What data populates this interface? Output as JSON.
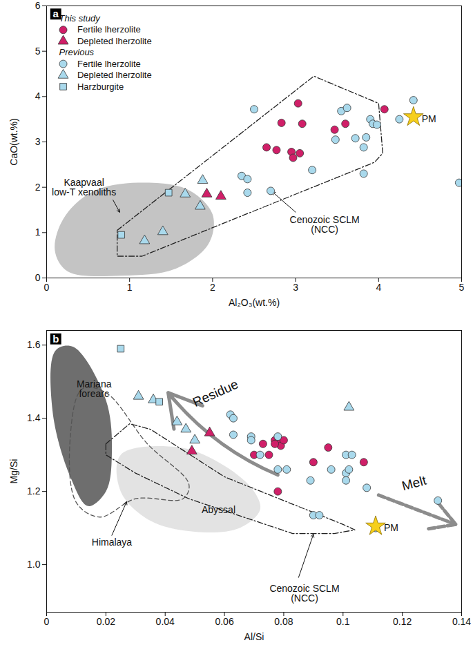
{
  "chart_data": [
    {
      "type": "scatter",
      "panel_label": "a",
      "xlabel": "Al₂O₃(wt.%)",
      "ylabel": "CaO(wt.%)",
      "xlim": [
        0,
        5
      ],
      "ylim": [
        0,
        6
      ],
      "xticks": [
        0,
        1,
        2,
        3,
        4,
        5
      ],
      "yticks": [
        0,
        1,
        2,
        3,
        4,
        5,
        6
      ],
      "legend": "top-left",
      "series": [
        {
          "name": "Fertile lherzolite",
          "group": "This study",
          "color": "#d01f68",
          "marker": "circle",
          "x": [
            3.03,
            4.07,
            3.47,
            3.6,
            2.83,
            3.08,
            2.65,
            2.77,
            2.95,
            2.97,
            3.05
          ],
          "y": [
            3.85,
            3.72,
            3.27,
            3.4,
            3.42,
            3.4,
            2.88,
            2.82,
            2.78,
            2.65,
            2.75
          ]
        },
        {
          "name": "Depleted lherzolite",
          "group": "This study",
          "color": "#d01f68",
          "marker": "triangle",
          "x": [
            1.93,
            2.1
          ],
          "y": [
            1.85,
            1.8
          ]
        },
        {
          "name": "Fertile lherzolite",
          "group": "Previous",
          "color": "#a9d9ec",
          "marker": "circle",
          "x": [
            2.5,
            3.55,
            3.62,
            3.48,
            3.72,
            3.85,
            3.9,
            3.93,
            3.98,
            4.25,
            4.42,
            3.82,
            3.82,
            3.2,
            2.35,
            2.42,
            2.42,
            2.7,
            4.97
          ],
          "y": [
            3.72,
            3.68,
            3.75,
            3.05,
            3.08,
            3.1,
            3.5,
            3.4,
            3.38,
            3.5,
            3.92,
            2.88,
            2.3,
            2.38,
            2.25,
            2.18,
            1.88,
            1.92,
            2.1
          ]
        },
        {
          "name": "Depleted lherzolite",
          "group": "Previous",
          "color": "#a9d9ec",
          "marker": "triangle",
          "x": [
            1.67,
            1.88,
            1.4,
            1.85,
            1.18
          ],
          "y": [
            1.85,
            2.15,
            1.02,
            1.58,
            0.82
          ]
        },
        {
          "name": "Harzburgite",
          "group": "Previous",
          "color": "#a9d9ec",
          "marker": "square",
          "x": [
            1.47,
            0.9
          ],
          "y": [
            1.88,
            0.95
          ]
        },
        {
          "name": "PM",
          "color": "#f6cf1c",
          "marker": "star",
          "x": [
            4.42
          ],
          "y": [
            3.55
          ]
        }
      ],
      "regions": [
        {
          "name": "Kaapvaal\nlow-T xenoliths",
          "color": "#c4c4c4",
          "points": [
            [
              0.25,
              0.15
            ],
            [
              0.9,
              0.05
            ],
            [
              1.55,
              0.2
            ],
            [
              1.95,
              0.75
            ],
            [
              2.0,
              1.4
            ],
            [
              1.7,
              1.95
            ],
            [
              1.1,
              2.1
            ],
            [
              0.55,
              1.9
            ],
            [
              0.2,
              1.3
            ],
            [
              0.1,
              0.6
            ]
          ]
        },
        {
          "name": "Cenozoic SCLM\n(NCC)",
          "color": "#222222",
          "line_style": "dashdot",
          "points": [
            [
              0.85,
              1.05
            ],
            [
              3.22,
              4.45
            ],
            [
              4.0,
              3.85
            ],
            [
              4.05,
              2.75
            ],
            [
              3.95,
              2.55
            ],
            [
              1.15,
              0.48
            ],
            [
              0.85,
              0.48
            ]
          ]
        }
      ]
    },
    {
      "type": "scatter",
      "panel_label": "b",
      "xlabel": "Al/Si",
      "ylabel": "Mg/Si",
      "xlim": [
        0,
        0.14
      ],
      "ylim": [
        0.87,
        1.64
      ],
      "xticks": [
        0,
        0.02,
        0.04,
        0.06,
        0.08,
        0.1,
        0.12,
        0.14
      ],
      "yticks": [
        {
          "value": 1,
          "label": "1.0"
        },
        1.2,
        1.4,
        1.6
      ],
      "series": [
        {
          "color": "#d01f68",
          "marker": "circle",
          "x": [
            0.07,
            0.073,
            0.075,
            0.077,
            0.078,
            0.079,
            0.08,
            0.078,
            0.09,
            0.095,
            0.107,
            0.077
          ],
          "y": [
            1.3,
            1.33,
            1.3,
            1.34,
            1.335,
            1.325,
            1.34,
            1.2,
            1.28,
            1.32,
            1.28,
            1.33
          ]
        },
        {
          "color": "#d01f68",
          "marker": "triangle",
          "x": [
            0.049,
            0.055
          ],
          "y": [
            1.31,
            1.36
          ]
        },
        {
          "color": "#a9d9ec",
          "marker": "circle",
          "x": [
            0.062,
            0.063,
            0.063,
            0.069,
            0.069,
            0.072,
            0.078,
            0.081,
            0.078,
            0.09,
            0.092,
            0.089,
            0.096,
            0.101,
            0.101,
            0.103,
            0.101,
            0.102,
            0.108,
            0.111,
            0.132
          ],
          "y": [
            1.41,
            1.4,
            1.355,
            1.35,
            1.34,
            1.3,
            1.35,
            1.26,
            1.26,
            1.135,
            1.135,
            1.23,
            1.26,
            1.25,
            1.3,
            1.3,
            1.23,
            1.26,
            1.21,
            1.1,
            1.175
          ]
        },
        {
          "color": "#a9d9ec",
          "marker": "triangle",
          "x": [
            0.031,
            0.036,
            0.044,
            0.047,
            0.05,
            0.102
          ],
          "y": [
            1.46,
            1.45,
            1.39,
            1.37,
            1.34,
            1.43
          ]
        },
        {
          "color": "#a9d9ec",
          "marker": "square",
          "x": [
            0.025,
            0.038
          ],
          "y": [
            1.59,
            1.445
          ]
        },
        {
          "name": "PM",
          "color": "#f6cf1c",
          "marker": "star",
          "x": [
            0.111
          ],
          "y": [
            1.105
          ]
        }
      ],
      "regions": [
        {
          "name": "Mariana\nforearc",
          "color": "#6e6e6e",
          "points": [
            [
              0.003,
              1.585
            ],
            [
              0.009,
              1.595
            ],
            [
              0.02,
              1.45
            ],
            [
              0.022,
              1.3
            ],
            [
              0.02,
              1.2
            ],
            [
              0.014,
              1.16
            ],
            [
              0.008,
              1.24
            ],
            [
              0.002,
              1.42
            ]
          ]
        },
        {
          "name": "Himalaya",
          "color": "#555555",
          "line_style": "dashed",
          "points": [
            [
              0.012,
              1.48
            ],
            [
              0.02,
              1.47
            ],
            [
              0.034,
              1.33
            ],
            [
              0.048,
              1.22
            ],
            [
              0.046,
              1.18
            ],
            [
              0.03,
              1.18
            ],
            [
              0.018,
              1.13
            ],
            [
              0.01,
              1.17
            ],
            [
              0.008,
              1.35
            ]
          ]
        },
        {
          "name": "Abyssal",
          "color": "#e3e3e3",
          "points": [
            [
              0.025,
              1.3
            ],
            [
              0.045,
              1.32
            ],
            [
              0.06,
              1.27
            ],
            [
              0.07,
              1.2
            ],
            [
              0.072,
              1.15
            ],
            [
              0.065,
              1.1
            ],
            [
              0.05,
              1.09
            ],
            [
              0.035,
              1.12
            ],
            [
              0.025,
              1.2
            ]
          ]
        },
        {
          "name": "Cenozoic SCLM\n(NCC)",
          "color": "#222222",
          "line_style": "dashdot",
          "points": [
            [
              0.02,
              1.33
            ],
            [
              0.028,
              1.385
            ],
            [
              0.035,
              1.37
            ],
            [
              0.06,
              1.24
            ],
            [
              0.1,
              1.11
            ],
            [
              0.104,
              1.095
            ],
            [
              0.097,
              1.085
            ],
            [
              0.083,
              1.085
            ],
            [
              0.048,
              1.18
            ],
            [
              0.03,
              1.25
            ],
            [
              0.02,
              1.3
            ]
          ]
        }
      ],
      "annotations": [
        "Residue",
        "Melt"
      ]
    }
  ]
}
